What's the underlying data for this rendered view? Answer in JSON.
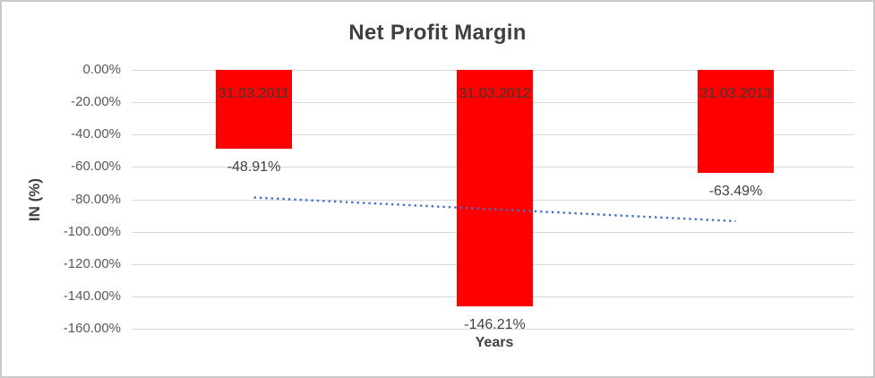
{
  "chart_data": {
    "type": "bar",
    "title": "Net Profit Margin",
    "xlabel": "Years",
    "ylabel": "IN (%)",
    "categories": [
      "31.03.2011",
      "31.03.2012",
      "31.03.2013"
    ],
    "values": [
      -48.91,
      -146.21,
      -63.49
    ],
    "value_labels": [
      "-48.91%",
      "-146.21%",
      "-63.49%"
    ],
    "ylim": [
      -160,
      0
    ],
    "ytick_labels": [
      "0.00%",
      "-20.00%",
      "-40.00%",
      "-60.00%",
      "-80.00%",
      "-100.00%",
      "-120.00%",
      "-140.00%",
      "-160.00%"
    ],
    "grid": true,
    "legend": "none",
    "colors": {
      "bar": "#FF0000",
      "title_text": "#404040",
      "axis_title_text": "#404040",
      "tick_text": "#595959",
      "data_label_text": "#404040",
      "category_label_text": "#3a3a3a",
      "gridline": "#d9d9d9",
      "trendline": "#4472C4",
      "border": "#c9c9c9"
    },
    "trendline": {
      "type": "linear",
      "style": "dotted",
      "start_value": -78.9,
      "end_value": -93.5
    }
  }
}
